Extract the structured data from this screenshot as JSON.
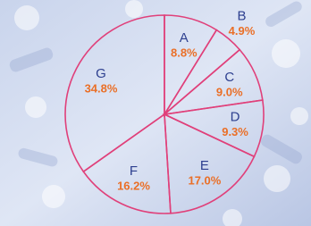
{
  "chart_data": {
    "type": "pie",
    "categories": [
      "A",
      "B",
      "C",
      "D",
      "E",
      "F",
      "G"
    ],
    "values": [
      8.8,
      4.9,
      9.0,
      9.3,
      17.0,
      16.2,
      34.8
    ],
    "value_labels": [
      "8.8%",
      "4.9%",
      "9.0%",
      "9.3%",
      "17.0%",
      "16.2%",
      "34.8%"
    ],
    "color": "#e0407a"
  }
}
